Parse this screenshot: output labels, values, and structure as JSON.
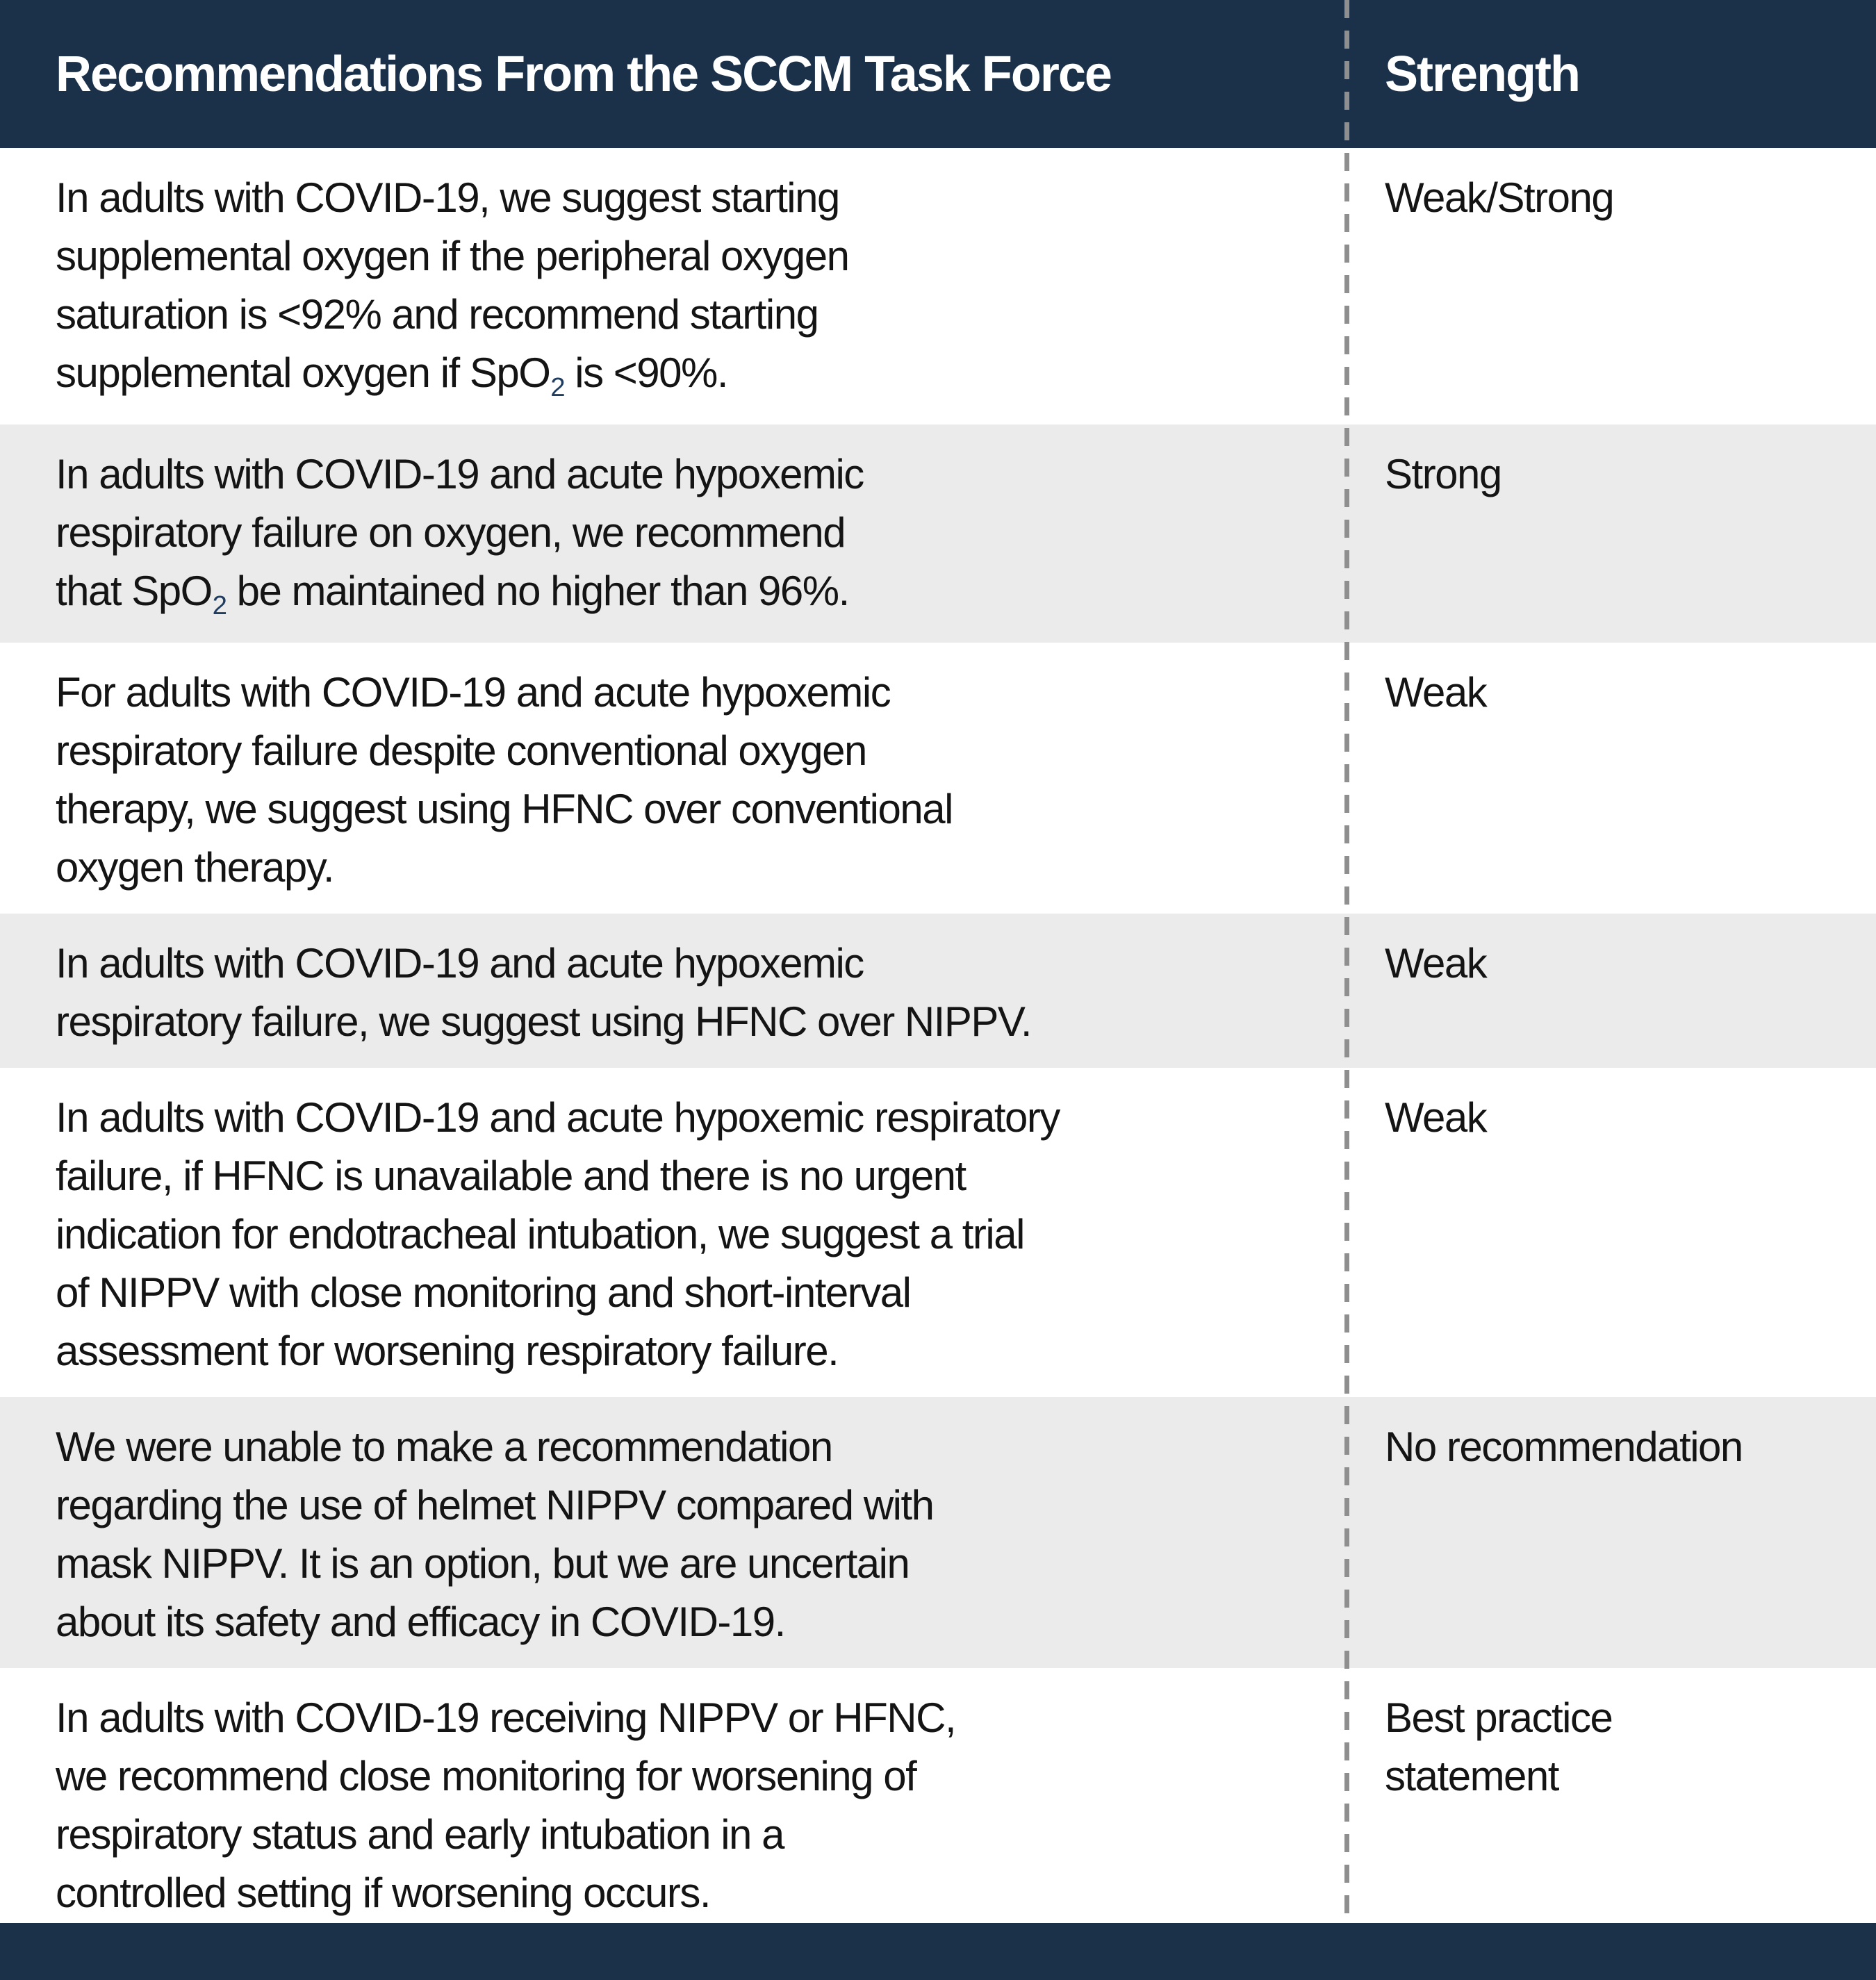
{
  "colors": {
    "navy": "#1b3049",
    "row_shade": "#ebebeb",
    "divider_gray": "#8f8f8f",
    "text": "#141414",
    "header_text": "#ffffff",
    "subscript_navy": "#1f3d60"
  },
  "table": {
    "header": {
      "recommendations_label": "Recommendations From the SCCM Task Force",
      "strength_label": "Strength"
    },
    "rows": [
      {
        "recommendation": "In adults with COVID-19, we suggest starting\nsupplemental oxygen if the peripheral oxygen\nsaturation is <92% and recommend starting\nsupplemental oxygen if SpO₂ is <90%.",
        "strength": "Weak/Strong",
        "shaded": false
      },
      {
        "recommendation": "In adults with COVID-19 and acute hypoxemic\nrespiratory failure on oxygen, we recommend\nthat SpO₂ be maintained no higher than 96%.",
        "strength": "Strong",
        "shaded": true
      },
      {
        "recommendation": "For adults with COVID-19 and acute hypoxemic\nrespiratory failure despite conventional oxygen\ntherapy, we suggest using HFNC over conventional\noxygen therapy.",
        "strength": "Weak",
        "shaded": false
      },
      {
        "recommendation": "In adults with COVID-19 and acute hypoxemic\nrespiratory failure, we suggest using HFNC over NIPPV.",
        "strength": "Weak",
        "shaded": true
      },
      {
        "recommendation": "In adults with COVID-19 and acute hypoxemic respiratory\nfailure, if HFNC is unavailable and there is no urgent\nindication for endotracheal intubation, we suggest a trial\nof NIPPV with close monitoring and short-interval\nassessment for worsening respiratory failure.",
        "strength": "Weak",
        "shaded": false
      },
      {
        "recommendation": "We were unable to make a recommendation\nregarding the use of helmet NIPPV compared with\nmask NIPPV. It is an option, but we are uncertain\nabout its safety and efficacy in COVID-19.",
        "strength": "No recommendation",
        "shaded": true
      },
      {
        "recommendation": "In adults with COVID-19 receiving NIPPV or HFNC,\nwe recommend close monitoring for worsening of\nrespiratory status and early intubation in a\ncontrolled setting if worsening occurs.",
        "strength": "Best practice\nstatement",
        "shaded": false
      }
    ]
  }
}
